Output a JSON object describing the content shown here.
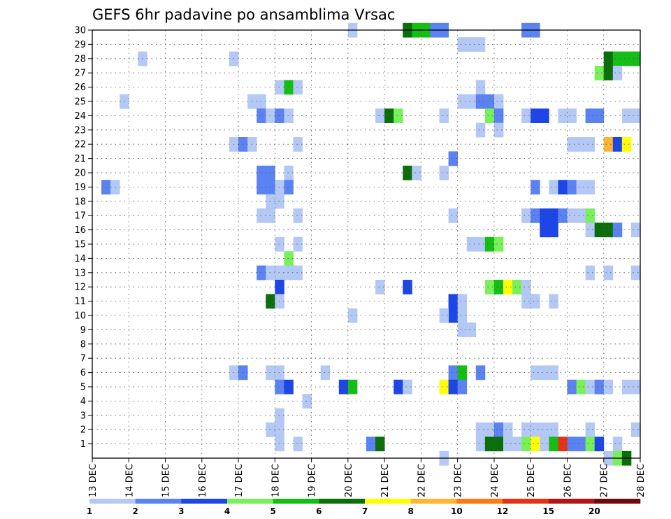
{
  "chart_data": {
    "type": "heatmap",
    "title": "GEFS 6hr padavine po ansamblima Vrsac",
    "x_axis": {
      "ticks": [
        "13 DEC",
        "14 DEC",
        "15 DEC",
        "16 DEC",
        "17 DEC",
        "18 DEC",
        "19 DEC",
        "20 DEC",
        "21 DEC",
        "22 DEC",
        "23 DEC",
        "24 DEC",
        "25 DEC",
        "26 DEC",
        "27 DEC",
        "28 DEC"
      ],
      "range_days": [
        13,
        28
      ],
      "step_hours": 6
    },
    "y_axis": {
      "ticks": [
        "1",
        "2",
        "3",
        "4",
        "5",
        "6",
        "7",
        "8",
        "9",
        "10",
        "11",
        "12",
        "13",
        "14",
        "15",
        "16",
        "17",
        "18",
        "19",
        "20",
        "21",
        "22",
        "23",
        "24",
        "25",
        "26",
        "27",
        "28",
        "29",
        "30"
      ],
      "range": [
        0,
        30
      ]
    },
    "grid": true,
    "colorbar": {
      "placement": "bottom",
      "labels": [
        "1",
        "2",
        "3",
        "4",
        "5",
        "6",
        "7",
        "8",
        "10",
        "12",
        "15",
        "20"
      ],
      "colors": [
        "#b4c8f5",
        "#5a82f0",
        "#1e46e6",
        "#78f05a",
        "#14be14",
        "#0a6e0a",
        "#ffff00",
        "#ffb432",
        "#ff7814",
        "#e63214",
        "#b41414",
        "#6e0a0a"
      ]
    },
    "cells": [
      {
        "x": 20.0,
        "y": 30,
        "c": 0
      },
      {
        "x": 21.5,
        "y": 30,
        "c": 5
      },
      {
        "x": 21.75,
        "y": 30,
        "c": 4
      },
      {
        "x": 22.0,
        "y": 30,
        "c": 4
      },
      {
        "x": 22.25,
        "y": 30,
        "c": 1
      },
      {
        "x": 22.5,
        "y": 30,
        "c": 1
      },
      {
        "x": 24.75,
        "y": 30,
        "c": 1
      },
      {
        "x": 25.0,
        "y": 30,
        "c": 1
      },
      {
        "x": 23.0,
        "y": 29,
        "c": 0
      },
      {
        "x": 23.25,
        "y": 29,
        "c": 0
      },
      {
        "x": 23.5,
        "y": 29,
        "c": 0
      },
      {
        "x": 14.25,
        "y": 28,
        "c": 0
      },
      {
        "x": 16.75,
        "y": 28,
        "c": 0
      },
      {
        "x": 27.0,
        "y": 28,
        "c": 5
      },
      {
        "x": 27.25,
        "y": 28,
        "c": 4
      },
      {
        "x": 27.5,
        "y": 28,
        "c": 4
      },
      {
        "x": 27.75,
        "y": 28,
        "c": 4
      },
      {
        "x": 26.75,
        "y": 27,
        "c": 3
      },
      {
        "x": 27.0,
        "y": 27,
        "c": 5
      },
      {
        "x": 27.25,
        "y": 27,
        "c": 0
      },
      {
        "x": 18.0,
        "y": 26,
        "c": 0
      },
      {
        "x": 18.25,
        "y": 26,
        "c": 4
      },
      {
        "x": 18.5,
        "y": 26,
        "c": 0
      },
      {
        "x": 23.5,
        "y": 26,
        "c": 0
      },
      {
        "x": 13.75,
        "y": 25,
        "c": 0
      },
      {
        "x": 17.25,
        "y": 25,
        "c": 0
      },
      {
        "x": 17.5,
        "y": 25,
        "c": 0
      },
      {
        "x": 23.0,
        "y": 25,
        "c": 0
      },
      {
        "x": 23.25,
        "y": 25,
        "c": 0
      },
      {
        "x": 23.5,
        "y": 25,
        "c": 1
      },
      {
        "x": 23.75,
        "y": 25,
        "c": 1
      },
      {
        "x": 24.0,
        "y": 25,
        "c": 0
      },
      {
        "x": 17.5,
        "y": 24,
        "c": 1
      },
      {
        "x": 17.75,
        "y": 24,
        "c": 0
      },
      {
        "x": 18.0,
        "y": 24,
        "c": 1
      },
      {
        "x": 18.25,
        "y": 24,
        "c": 0
      },
      {
        "x": 20.75,
        "y": 24,
        "c": 0
      },
      {
        "x": 21.0,
        "y": 24,
        "c": 5
      },
      {
        "x": 21.25,
        "y": 24,
        "c": 3
      },
      {
        "x": 22.5,
        "y": 24,
        "c": 0
      },
      {
        "x": 23.75,
        "y": 24,
        "c": 3
      },
      {
        "x": 24.0,
        "y": 24,
        "c": 1
      },
      {
        "x": 24.75,
        "y": 24,
        "c": 0
      },
      {
        "x": 25.0,
        "y": 24,
        "c": 2
      },
      {
        "x": 25.25,
        "y": 24,
        "c": 2
      },
      {
        "x": 25.75,
        "y": 24,
        "c": 0
      },
      {
        "x": 26.0,
        "y": 24,
        "c": 0
      },
      {
        "x": 26.5,
        "y": 24,
        "c": 1
      },
      {
        "x": 26.75,
        "y": 24,
        "c": 1
      },
      {
        "x": 27.5,
        "y": 24,
        "c": 0
      },
      {
        "x": 27.75,
        "y": 24,
        "c": 0
      },
      {
        "x": 23.5,
        "y": 23,
        "c": 0
      },
      {
        "x": 24.0,
        "y": 23,
        "c": 0
      },
      {
        "x": 16.75,
        "y": 22,
        "c": 0
      },
      {
        "x": 17.0,
        "y": 22,
        "c": 1
      },
      {
        "x": 17.25,
        "y": 22,
        "c": 0
      },
      {
        "x": 18.5,
        "y": 22,
        "c": 0
      },
      {
        "x": 26.0,
        "y": 22,
        "c": 0
      },
      {
        "x": 26.25,
        "y": 22,
        "c": 0
      },
      {
        "x": 26.5,
        "y": 22,
        "c": 0
      },
      {
        "x": 27.0,
        "y": 22,
        "c": 7
      },
      {
        "x": 27.25,
        "y": 22,
        "c": 2
      },
      {
        "x": 27.5,
        "y": 22,
        "c": 6
      },
      {
        "x": 22.75,
        "y": 21,
        "c": 1
      },
      {
        "x": 17.5,
        "y": 20,
        "c": 1
      },
      {
        "x": 17.75,
        "y": 20,
        "c": 1
      },
      {
        "x": 18.25,
        "y": 20,
        "c": 0
      },
      {
        "x": 21.5,
        "y": 20,
        "c": 5
      },
      {
        "x": 21.75,
        "y": 20,
        "c": 0
      },
      {
        "x": 22.5,
        "y": 20,
        "c": 0
      },
      {
        "x": 13.25,
        "y": 19,
        "c": 1
      },
      {
        "x": 13.5,
        "y": 19,
        "c": 0
      },
      {
        "x": 17.5,
        "y": 19,
        "c": 1
      },
      {
        "x": 17.75,
        "y": 19,
        "c": 1
      },
      {
        "x": 18.0,
        "y": 19,
        "c": 0
      },
      {
        "x": 18.25,
        "y": 19,
        "c": 1
      },
      {
        "x": 25.0,
        "y": 19,
        "c": 1
      },
      {
        "x": 25.5,
        "y": 19,
        "c": 0
      },
      {
        "x": 25.75,
        "y": 19,
        "c": 2
      },
      {
        "x": 26.0,
        "y": 19,
        "c": 1
      },
      {
        "x": 26.25,
        "y": 19,
        "c": 0
      },
      {
        "x": 26.5,
        "y": 19,
        "c": 0
      },
      {
        "x": 17.75,
        "y": 18,
        "c": 0
      },
      {
        "x": 18.0,
        "y": 18,
        "c": 0
      },
      {
        "x": 17.5,
        "y": 17,
        "c": 0
      },
      {
        "x": 17.75,
        "y": 17,
        "c": 0
      },
      {
        "x": 18.5,
        "y": 17,
        "c": 0
      },
      {
        "x": 22.75,
        "y": 17,
        "c": 0
      },
      {
        "x": 24.75,
        "y": 17,
        "c": 0
      },
      {
        "x": 25.0,
        "y": 17,
        "c": 1
      },
      {
        "x": 25.25,
        "y": 17,
        "c": 2
      },
      {
        "x": 25.5,
        "y": 17,
        "c": 2
      },
      {
        "x": 25.75,
        "y": 17,
        "c": 1
      },
      {
        "x": 26.0,
        "y": 17,
        "c": 0
      },
      {
        "x": 26.25,
        "y": 17,
        "c": 0
      },
      {
        "x": 26.5,
        "y": 17,
        "c": 3
      },
      {
        "x": 25.25,
        "y": 16,
        "c": 2
      },
      {
        "x": 25.5,
        "y": 16,
        "c": 2
      },
      {
        "x": 26.5,
        "y": 16,
        "c": 0
      },
      {
        "x": 26.75,
        "y": 16,
        "c": 5
      },
      {
        "x": 27.0,
        "y": 16,
        "c": 5
      },
      {
        "x": 27.25,
        "y": 16,
        "c": 1
      },
      {
        "x": 27.75,
        "y": 16,
        "c": 0
      },
      {
        "x": 18.0,
        "y": 15,
        "c": 0
      },
      {
        "x": 18.5,
        "y": 15,
        "c": 0
      },
      {
        "x": 23.25,
        "y": 15,
        "c": 0
      },
      {
        "x": 23.5,
        "y": 15,
        "c": 0
      },
      {
        "x": 23.75,
        "y": 15,
        "c": 4
      },
      {
        "x": 24.0,
        "y": 15,
        "c": 3
      },
      {
        "x": 18.25,
        "y": 14,
        "c": 3
      },
      {
        "x": 17.5,
        "y": 13,
        "c": 1
      },
      {
        "x": 17.75,
        "y": 13,
        "c": 0
      },
      {
        "x": 18.0,
        "y": 13,
        "c": 0
      },
      {
        "x": 18.25,
        "y": 13,
        "c": 0
      },
      {
        "x": 18.5,
        "y": 13,
        "c": 0
      },
      {
        "x": 26.5,
        "y": 13,
        "c": 0
      },
      {
        "x": 27.0,
        "y": 13,
        "c": 0
      },
      {
        "x": 27.75,
        "y": 13,
        "c": 0
      },
      {
        "x": 18.0,
        "y": 12,
        "c": 2
      },
      {
        "x": 20.75,
        "y": 12,
        "c": 0
      },
      {
        "x": 21.5,
        "y": 12,
        "c": 2
      },
      {
        "x": 23.75,
        "y": 12,
        "c": 3
      },
      {
        "x": 24.0,
        "y": 12,
        "c": 4
      },
      {
        "x": 24.25,
        "y": 12,
        "c": 6
      },
      {
        "x": 24.5,
        "y": 12,
        "c": 3
      },
      {
        "x": 24.75,
        "y": 12,
        "c": 0
      },
      {
        "x": 17.75,
        "y": 11,
        "c": 5
      },
      {
        "x": 18.0,
        "y": 11,
        "c": 0
      },
      {
        "x": 22.75,
        "y": 11,
        "c": 2
      },
      {
        "x": 23.0,
        "y": 11,
        "c": 0
      },
      {
        "x": 24.75,
        "y": 11,
        "c": 0
      },
      {
        "x": 25.0,
        "y": 11,
        "c": 0
      },
      {
        "x": 25.5,
        "y": 11,
        "c": 0
      },
      {
        "x": 22.75,
        "y": 10,
        "c": 2
      },
      {
        "x": 23.0,
        "y": 10,
        "c": 0
      },
      {
        "x": 20.0,
        "y": 10,
        "c": 0
      },
      {
        "x": 22.5,
        "y": 10,
        "c": 0
      },
      {
        "x": 23.0,
        "y": 9,
        "c": 0
      },
      {
        "x": 23.25,
        "y": 9,
        "c": 0
      },
      {
        "x": 16.75,
        "y": 6,
        "c": 0
      },
      {
        "x": 17.0,
        "y": 6,
        "c": 1
      },
      {
        "x": 17.75,
        "y": 6,
        "c": 0
      },
      {
        "x": 18.0,
        "y": 6,
        "c": 0
      },
      {
        "x": 19.25,
        "y": 6,
        "c": 0
      },
      {
        "x": 22.75,
        "y": 6,
        "c": 1
      },
      {
        "x": 23.0,
        "y": 6,
        "c": 4
      },
      {
        "x": 23.5,
        "y": 6,
        "c": 1
      },
      {
        "x": 25.0,
        "y": 6,
        "c": 0
      },
      {
        "x": 25.25,
        "y": 6,
        "c": 0
      },
      {
        "x": 25.5,
        "y": 6,
        "c": 0
      },
      {
        "x": 18.0,
        "y": 5,
        "c": 1
      },
      {
        "x": 18.25,
        "y": 5,
        "c": 2
      },
      {
        "x": 19.75,
        "y": 5,
        "c": 2
      },
      {
        "x": 20.0,
        "y": 5,
        "c": 4
      },
      {
        "x": 21.25,
        "y": 5,
        "c": 2
      },
      {
        "x": 21.5,
        "y": 5,
        "c": 0
      },
      {
        "x": 22.5,
        "y": 5,
        "c": 6
      },
      {
        "x": 22.75,
        "y": 5,
        "c": 2
      },
      {
        "x": 23.0,
        "y": 5,
        "c": 1
      },
      {
        "x": 26.0,
        "y": 5,
        "c": 1
      },
      {
        "x": 26.25,
        "y": 5,
        "c": 3
      },
      {
        "x": 26.5,
        "y": 5,
        "c": 0
      },
      {
        "x": 26.75,
        "y": 5,
        "c": 1
      },
      {
        "x": 27.0,
        "y": 5,
        "c": 0
      },
      {
        "x": 27.5,
        "y": 5,
        "c": 0
      },
      {
        "x": 27.75,
        "y": 5,
        "c": 0
      },
      {
        "x": 18.75,
        "y": 4,
        "c": 0
      },
      {
        "x": 18.0,
        "y": 3,
        "c": 0
      },
      {
        "x": 17.75,
        "y": 2,
        "c": 0
      },
      {
        "x": 18.0,
        "y": 2,
        "c": 0
      },
      {
        "x": 23.5,
        "y": 2,
        "c": 0
      },
      {
        "x": 23.75,
        "y": 2,
        "c": 0
      },
      {
        "x": 24.0,
        "y": 2,
        "c": 1
      },
      {
        "x": 24.25,
        "y": 2,
        "c": 0
      },
      {
        "x": 24.75,
        "y": 2,
        "c": 0
      },
      {
        "x": 25.0,
        "y": 2,
        "c": 0
      },
      {
        "x": 25.25,
        "y": 2,
        "c": 0
      },
      {
        "x": 25.5,
        "y": 2,
        "c": 0
      },
      {
        "x": 26.5,
        "y": 2,
        "c": 0
      },
      {
        "x": 27.75,
        "y": 2,
        "c": 0
      },
      {
        "x": 18.0,
        "y": 1,
        "c": 0
      },
      {
        "x": 18.5,
        "y": 1,
        "c": 0
      },
      {
        "x": 20.5,
        "y": 1,
        "c": 1
      },
      {
        "x": 20.75,
        "y": 1,
        "c": 5
      },
      {
        "x": 23.5,
        "y": 1,
        "c": 0
      },
      {
        "x": 23.75,
        "y": 1,
        "c": 5
      },
      {
        "x": 24.0,
        "y": 1,
        "c": 5
      },
      {
        "x": 24.25,
        "y": 1,
        "c": 0
      },
      {
        "x": 24.5,
        "y": 1,
        "c": 0
      },
      {
        "x": 24.75,
        "y": 1,
        "c": 3
      },
      {
        "x": 25.0,
        "y": 1,
        "c": 6
      },
      {
        "x": 25.25,
        "y": 1,
        "c": 0
      },
      {
        "x": 25.5,
        "y": 1,
        "c": 4
      },
      {
        "x": 25.75,
        "y": 1,
        "c": 9
      },
      {
        "x": 26.0,
        "y": 1,
        "c": 1
      },
      {
        "x": 26.25,
        "y": 1,
        "c": 1
      },
      {
        "x": 26.5,
        "y": 1,
        "c": 3
      },
      {
        "x": 26.75,
        "y": 1,
        "c": 2
      },
      {
        "x": 27.25,
        "y": 1,
        "c": 0
      },
      {
        "x": 22.5,
        "y": 0,
        "c": 0
      },
      {
        "x": 27.0,
        "y": 0,
        "c": 0
      },
      {
        "x": 27.25,
        "y": 0,
        "c": 3
      },
      {
        "x": 27.5,
        "y": 0,
        "c": 5
      }
    ]
  }
}
